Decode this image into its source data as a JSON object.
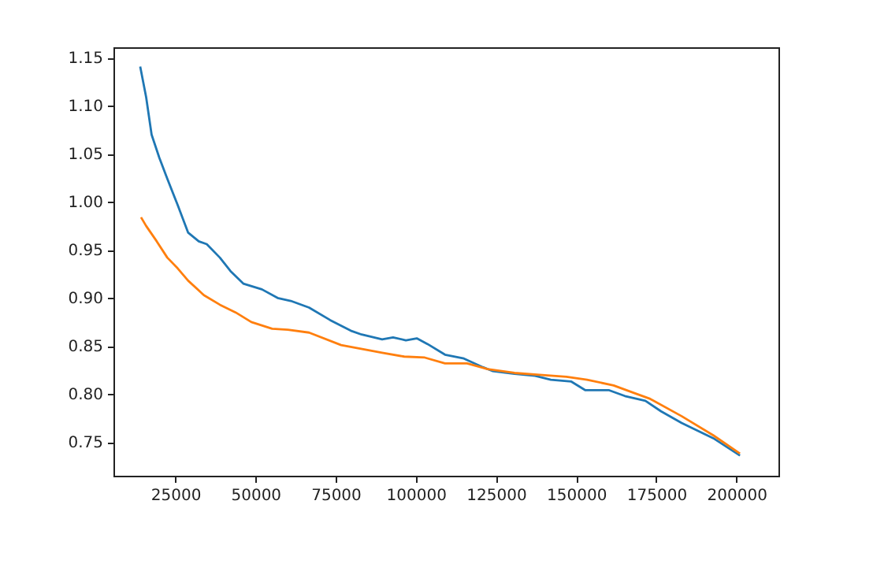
{
  "chart_data": {
    "type": "line",
    "xlim": [
      5700,
      213100
    ],
    "ylim": [
      0.715,
      1.161
    ],
    "xticks": [
      25000,
      50000,
      75000,
      100000,
      125000,
      150000,
      175000,
      200000
    ],
    "yticks": [
      {
        "value": 0.75,
        "label": "0.75"
      },
      {
        "value": 0.8,
        "label": "0.80"
      },
      {
        "value": 0.85,
        "label": "0.85"
      },
      {
        "value": 0.9,
        "label": "0.90"
      },
      {
        "value": 0.95,
        "label": "0.95"
      },
      {
        "value": 1.0,
        "label": "1.00"
      },
      {
        "value": 1.05,
        "label": "1.05"
      },
      {
        "value": 1.1,
        "label": "1.10"
      },
      {
        "value": 1.15,
        "label": "1.15"
      }
    ],
    "grid": false,
    "series": [
      {
        "color": "#1f77b4",
        "x": [
          14040,
          15900,
          17600,
          20000,
          22500,
          25700,
          29000,
          32300,
          34800,
          38900,
          42200,
          46200,
          52000,
          56900,
          61000,
          66700,
          73300,
          79700,
          83100,
          89500,
          92900,
          96900,
          100300,
          103700,
          109100,
          115000,
          120900,
          123900,
          130800,
          137200,
          142100,
          148500,
          152900,
          160300,
          165200,
          171600,
          176500,
          182900,
          192800,
          201100
        ],
        "values": [
          1.141,
          1.109,
          1.07,
          1.046,
          1.024,
          0.997,
          0.968,
          0.959,
          0.956,
          0.942,
          0.928,
          0.915,
          0.909,
          0.9,
          0.897,
          0.89,
          0.877,
          0.866,
          0.862,
          0.857,
          0.859,
          0.856,
          0.858,
          0.852,
          0.841,
          0.837,
          0.828,
          0.824,
          0.821,
          0.819,
          0.815,
          0.813,
          0.804,
          0.804,
          0.798,
          0.793,
          0.782,
          0.77,
          0.754,
          0.736
        ]
      },
      {
        "color": "#ff7f0e",
        "x": [
          14300,
          15900,
          19200,
          22500,
          25700,
          29000,
          33900,
          38900,
          43800,
          48700,
          55200,
          60100,
          66700,
          76700,
          84600,
          89500,
          96400,
          102800,
          109100,
          116000,
          122400,
          130800,
          138600,
          147000,
          153400,
          161700,
          168200,
          173100,
          182900,
          192800,
          201100
        ],
        "values": [
          0.984,
          0.975,
          0.959,
          0.942,
          0.931,
          0.918,
          0.903,
          0.893,
          0.885,
          0.875,
          0.868,
          0.867,
          0.864,
          0.851,
          0.846,
          0.843,
          0.839,
          0.838,
          0.832,
          0.832,
          0.826,
          0.822,
          0.82,
          0.818,
          0.815,
          0.809,
          0.801,
          0.795,
          0.777,
          0.757,
          0.738
        ]
      }
    ]
  }
}
